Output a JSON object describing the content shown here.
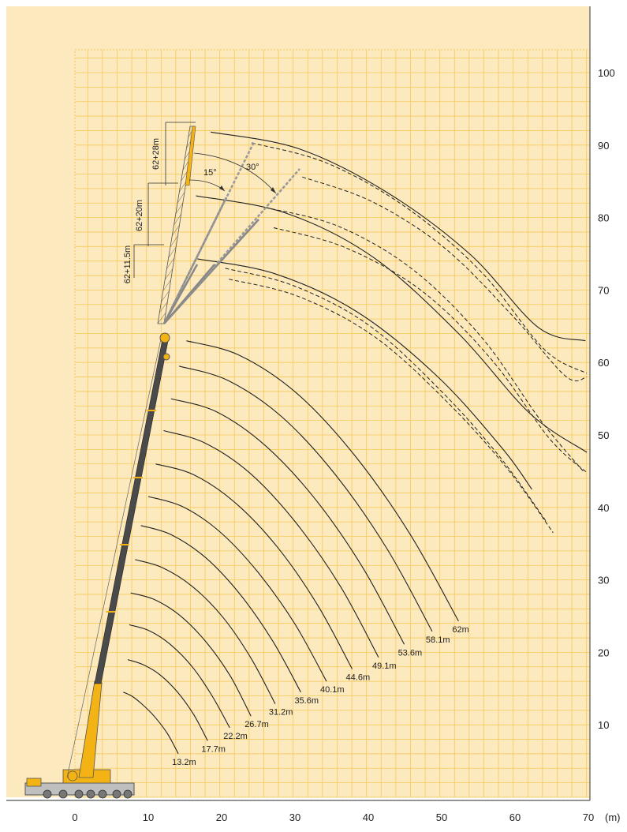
{
  "chart_data": {
    "type": "line",
    "title": "",
    "xlabel": "(m)",
    "ylabel": "",
    "xlim": [
      -10,
      70
    ],
    "ylim": [
      0,
      107
    ],
    "x_ticks": [
      0,
      10,
      20,
      30,
      40,
      50,
      60,
      70
    ],
    "y_ticks": [
      10,
      20,
      30,
      40,
      50,
      60,
      70,
      80,
      90,
      100
    ],
    "grid": true,
    "colors": {
      "background": "#fce9bd",
      "grid": "#f5c95a",
      "curve": "#222222",
      "main_boom": "#4a4a4a",
      "boom_base": "#f4b315",
      "jib": "#f4b315",
      "lattice": "#555555"
    },
    "main_boom_series": [
      {
        "label": "13.2m",
        "x": [
          6.6,
          7.7,
          9.1,
          10.8,
          12.6,
          14.1
        ],
        "y": [
          14.5,
          14.0,
          12.9,
          11.2,
          8.8,
          6.0
        ]
      },
      {
        "label": "17.7m",
        "x": [
          7.2,
          9.3,
          11.6,
          14.0,
          16.2,
          18.1
        ],
        "y": [
          19.0,
          18.3,
          16.9,
          14.5,
          11.4,
          7.8
        ]
      },
      {
        "label": "22.2m",
        "x": [
          7.4,
          10.1,
          13.0,
          16.0,
          18.7,
          21.1
        ],
        "y": [
          23.8,
          23.0,
          21.1,
          18.0,
          14.0,
          9.6
        ]
      },
      {
        "label": "26.7m",
        "x": [
          7.6,
          10.8,
          14.3,
          17.9,
          21.2,
          24.0
        ],
        "y": [
          28.2,
          27.3,
          25.1,
          21.4,
          16.7,
          11.2
        ]
      },
      {
        "label": "31.2m",
        "x": [
          8.2,
          11.9,
          16.0,
          20.2,
          24.0,
          27.3
        ],
        "y": [
          32.8,
          31.7,
          29.1,
          24.8,
          19.2,
          12.9
        ]
      },
      {
        "label": "35.6m",
        "x": [
          9.0,
          13.2,
          17.9,
          22.6,
          27.0,
          30.8
        ],
        "y": [
          37.5,
          36.2,
          33.0,
          27.9,
          21.5,
          14.5
        ]
      },
      {
        "label": "40.1m",
        "x": [
          10.0,
          14.7,
          19.8,
          25.0,
          30.0,
          34.3
        ],
        "y": [
          41.5,
          40.1,
          36.6,
          31.0,
          23.9,
          16.0
        ]
      },
      {
        "label": "44.6m",
        "x": [
          11.0,
          16.2,
          21.9,
          27.7,
          33.1,
          37.8
        ],
        "y": [
          46.0,
          44.5,
          40.6,
          34.4,
          26.5,
          17.7
        ]
      },
      {
        "label": "49.1m",
        "x": [
          12.1,
          17.7,
          23.9,
          30.2,
          36.2,
          41.4
        ],
        "y": [
          50.6,
          48.9,
          44.7,
          37.8,
          29.1,
          19.3
        ]
      },
      {
        "label": "53.6m",
        "x": [
          13.1,
          19.3,
          26.0,
          32.8,
          39.3,
          44.9
        ],
        "y": [
          55.0,
          53.2,
          48.5,
          41.1,
          31.6,
          21.1
        ]
      },
      {
        "label": "58.1m",
        "x": [
          14.2,
          20.9,
          28.2,
          35.6,
          42.6,
          48.7
        ],
        "y": [
          59.5,
          57.5,
          52.5,
          44.4,
          34.2,
          22.9
        ]
      },
      {
        "label": "62m",
        "x": [
          15.2,
          22.4,
          30.3,
          38.2,
          45.7,
          52.3
        ],
        "y": [
          63.0,
          61.0,
          55.7,
          47.1,
          36.3,
          24.3
        ]
      }
    ],
    "jib_series": [
      {
        "jib": "62+11.5m",
        "x": [
          16.7,
          27.4,
          38.6,
          49.5,
          58.3,
          62.3
        ],
        "y": [
          74.3,
          72.2,
          66.9,
          58.0,
          48.1,
          42.5
        ],
        "x_15": [
          20.5,
          29.8,
          40.0,
          49.8,
          57.9,
          64.3
        ],
        "y_15": [
          73.0,
          70.6,
          65.2,
          56.2,
          47.0,
          38.0
        ],
        "x_30": [
          21.0,
          30.5,
          40.8,
          50.7,
          58.9,
          65.2
        ],
        "y_30": [
          71.5,
          69.1,
          63.6,
          54.6,
          45.4,
          36.5
        ]
      },
      {
        "jib": "62+20m",
        "x": [
          16.5,
          28.8,
          40.7,
          52.3,
          62.0,
          69.8
        ],
        "y": [
          83.0,
          80.6,
          74.5,
          64.0,
          53.0,
          47.6
        ],
        "x_15": [
          25.9,
          35.9,
          46.1,
          55.5,
          63.5,
          69.3
        ],
        "y_15": [
          81.4,
          78.8,
          72.8,
          63.4,
          52.0,
          45.0
        ],
        "x_30": [
          27.1,
          37.0,
          47.4,
          56.8,
          64.7,
          69.8
        ],
        "y_30": [
          78.6,
          75.8,
          69.8,
          60.4,
          49.5,
          44.8
        ]
      },
      {
        "jib": "62+28m",
        "x": [
          18.5,
          30.5,
          42.5,
          53.9,
          63.2,
          69.6
        ],
        "y": [
          91.8,
          89.5,
          83.5,
          74.9,
          64.8,
          63.0
        ],
        "x_15": [
          24.1,
          34.4,
          45.3,
          55.4,
          64.0,
          69.8
        ],
        "y_15": [
          90.3,
          87.5,
          81.3,
          72.5,
          61.8,
          58.5
        ],
        "x_30": [
          31.0,
          40.5,
          50.4,
          59.7,
          66.9,
          69.8
        ],
        "y_30": [
          85.6,
          82.2,
          75.8,
          66.4,
          58.1,
          58.0
        ]
      }
    ],
    "annotations": {
      "jib_labels": [
        "62+28m",
        "62+20m",
        "62+11.5m"
      ],
      "angles": [
        "15°",
        "30°"
      ]
    }
  }
}
